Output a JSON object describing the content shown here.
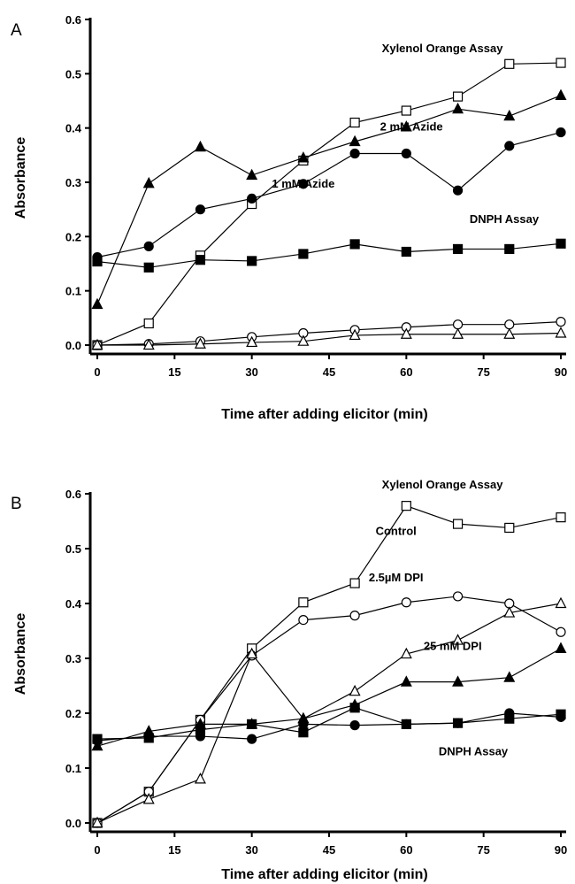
{
  "chart_data": [
    {
      "type": "line",
      "panel_label": "A",
      "xlabel": "Time after adding elicitor (min)",
      "ylabel": "Absorbance",
      "xlim": [
        0,
        90
      ],
      "ylim": [
        0,
        0.6
      ],
      "x_ticks": [
        0,
        15,
        30,
        45,
        60,
        75,
        90
      ],
      "y_ticks": [
        0.0,
        0.1,
        0.2,
        0.3,
        0.4,
        0.5,
        0.6
      ],
      "x_tick_labels": [
        "0",
        "15",
        "30",
        "45",
        "60",
        "75",
        "90"
      ],
      "y_tick_labels": [
        "0.0",
        "0.1",
        "0.2",
        "0.3",
        "0.4",
        "0.5",
        "0.6"
      ],
      "grid": false,
      "annotations": [
        {
          "text": "Xylenol Orange Assay",
          "x": 67,
          "y": 0.54
        },
        {
          "text": "2 mM Azide",
          "x": 61,
          "y": 0.395
        },
        {
          "text": "1 mM Azide",
          "x": 40,
          "y": 0.29
        },
        {
          "text": "DNPH Assay",
          "x": 79,
          "y": 0.225
        }
      ],
      "series": [
        {
          "marker": "square-open",
          "x": [
            0,
            10,
            20,
            30,
            40,
            50,
            60,
            70,
            80,
            90
          ],
          "y": [
            0.0,
            0.04,
            0.165,
            0.26,
            0.34,
            0.41,
            0.432,
            0.458,
            0.518,
            0.52
          ]
        },
        {
          "marker": "triangle-filled",
          "x": [
            0,
            10,
            20,
            30,
            40,
            50,
            60,
            70,
            80,
            90
          ],
          "y": [
            0.075,
            0.298,
            0.365,
            0.313,
            0.345,
            0.375,
            0.402,
            0.435,
            0.422,
            0.46
          ]
        },
        {
          "marker": "circle-filled",
          "x": [
            0,
            10,
            20,
            30,
            40,
            50,
            60,
            70,
            80,
            90
          ],
          "y": [
            0.162,
            0.182,
            0.25,
            0.27,
            0.297,
            0.353,
            0.353,
            0.285,
            0.367,
            0.392
          ]
        },
        {
          "marker": "square-filled",
          "x": [
            0,
            10,
            20,
            30,
            40,
            50,
            60,
            70,
            80,
            90
          ],
          "y": [
            0.154,
            0.143,
            0.157,
            0.155,
            0.168,
            0.186,
            0.172,
            0.177,
            0.177,
            0.187
          ]
        },
        {
          "marker": "circle-open",
          "x": [
            0,
            10,
            20,
            30,
            40,
            50,
            60,
            70,
            80,
            90
          ],
          "y": [
            0.0,
            0.002,
            0.007,
            0.015,
            0.022,
            0.028,
            0.033,
            0.038,
            0.038,
            0.043
          ]
        },
        {
          "marker": "triangle-open",
          "x": [
            0,
            10,
            20,
            30,
            40,
            50,
            60,
            70,
            80,
            90
          ],
          "y": [
            0.0,
            0.0,
            0.002,
            0.005,
            0.007,
            0.018,
            0.02,
            0.02,
            0.02,
            0.022
          ]
        }
      ]
    },
    {
      "type": "line",
      "panel_label": "B",
      "xlabel": "Time after adding elicitor (min)",
      "ylabel": "Absorbance",
      "xlim": [
        0,
        90
      ],
      "ylim": [
        0,
        0.6
      ],
      "x_ticks": [
        0,
        15,
        30,
        45,
        60,
        75,
        90
      ],
      "y_ticks": [
        0.0,
        0.1,
        0.2,
        0.3,
        0.4,
        0.5,
        0.6
      ],
      "x_tick_labels": [
        "0",
        "15",
        "30",
        "45",
        "60",
        "75",
        "90"
      ],
      "y_tick_labels": [
        "0.0",
        "0.1",
        "0.2",
        "0.3",
        "0.4",
        "0.5",
        "0.6"
      ],
      "grid": false,
      "annotations": [
        {
          "text": "Xylenol Orange Assay",
          "x": 67,
          "y": 0.61
        },
        {
          "text": "Control",
          "x": 58,
          "y": 0.525
        },
        {
          "text": "2.5µM DPI",
          "x": 58,
          "y": 0.44
        },
        {
          "text": "25 mM DPI",
          "x": 69,
          "y": 0.315
        },
        {
          "text": "DNPH Assay",
          "x": 73,
          "y": 0.123
        }
      ],
      "series": [
        {
          "marker": "square-open",
          "x": [
            0,
            10,
            20,
            30,
            40,
            50,
            60,
            70,
            80,
            90
          ],
          "y": [
            0.0,
            0.057,
            0.188,
            0.318,
            0.402,
            0.437,
            0.578,
            0.545,
            0.538,
            0.557
          ]
        },
        {
          "marker": "circle-open",
          "x": [
            0,
            10,
            20,
            30,
            40,
            50,
            60,
            70,
            80,
            90
          ],
          "y": [
            0.0,
            0.057,
            0.188,
            0.305,
            0.37,
            0.378,
            0.402,
            0.413,
            0.4,
            0.348
          ]
        },
        {
          "marker": "triangle-open",
          "x": [
            0,
            10,
            20,
            30,
            40,
            50,
            60,
            70,
            80,
            90
          ],
          "y": [
            0.0,
            0.043,
            0.08,
            0.308,
            0.19,
            0.24,
            0.308,
            0.333,
            0.383,
            0.4
          ]
        },
        {
          "marker": "triangle-filled",
          "x": [
            0,
            10,
            20,
            30,
            40,
            50,
            60,
            70,
            80,
            90
          ],
          "y": [
            0.14,
            0.167,
            0.18,
            0.18,
            0.19,
            0.215,
            0.257,
            0.257,
            0.265,
            0.318
          ]
        },
        {
          "marker": "square-filled",
          "x": [
            0,
            10,
            20,
            30,
            40,
            50,
            60,
            70,
            80,
            90
          ],
          "y": [
            0.153,
            0.155,
            0.17,
            0.18,
            0.165,
            0.21,
            0.18,
            0.182,
            0.19,
            0.198
          ]
        },
        {
          "marker": "circle-filled",
          "x": [
            0,
            10,
            20,
            30,
            40,
            50,
            60,
            70,
            80,
            90
          ],
          "y": [
            0.15,
            0.158,
            0.158,
            0.153,
            0.18,
            0.178,
            0.18,
            0.182,
            0.2,
            0.193
          ]
        }
      ]
    }
  ]
}
